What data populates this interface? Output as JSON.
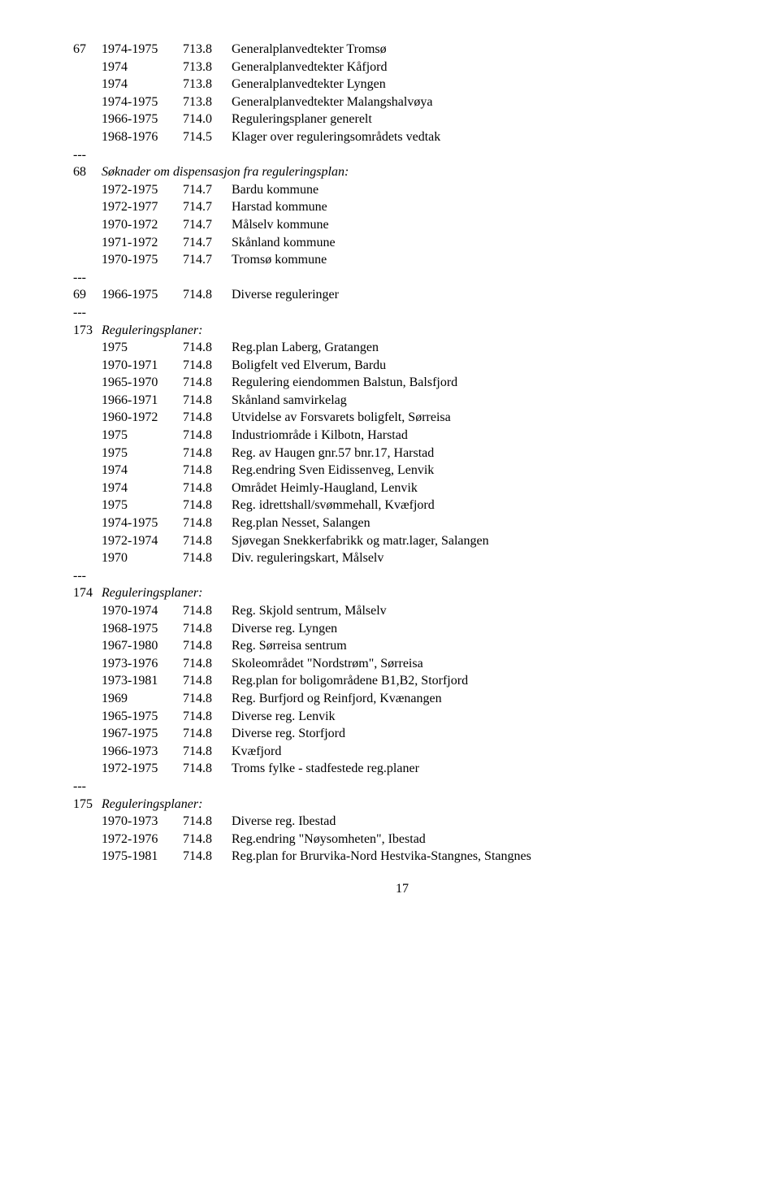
{
  "separator": "---",
  "page_number": "17",
  "sections": [
    {
      "num": "67",
      "header": null,
      "rows": [
        {
          "year": "1974-1975",
          "code": "713.8",
          "desc": "Generalplanvedtekter Tromsø"
        },
        {
          "year": "1974",
          "code": "713.8",
          "desc": "Generalplanvedtekter Kåfjord"
        },
        {
          "year": "1974",
          "code": "713.8",
          "desc": "Generalplanvedtekter Lyngen"
        },
        {
          "year": "1974-1975",
          "code": "713.8",
          "desc": "Generalplanvedtekter Malangshalvøya"
        },
        {
          "year": "1966-1975",
          "code": "714.0",
          "desc": "Reguleringsplaner generelt"
        },
        {
          "year": "1968-1976",
          "code": "714.5",
          "desc": "Klager over reguleringsområdets vedtak"
        }
      ]
    },
    {
      "num": "68",
      "header": "Søknader om dispensasjon fra reguleringsplan:",
      "rows": [
        {
          "year": "1972-1975",
          "code": "714.7",
          "desc": "Bardu kommune"
        },
        {
          "year": "1972-1977",
          "code": "714.7",
          "desc": "Harstad kommune"
        },
        {
          "year": "1970-1972",
          "code": "714.7",
          "desc": "Målselv kommune"
        },
        {
          "year": "1971-1972",
          "code": "714.7",
          "desc": "Skånland kommune"
        },
        {
          "year": "1970-1975",
          "code": "714.7",
          "desc": "Tromsø kommune"
        }
      ]
    },
    {
      "num": "69",
      "header": null,
      "rows": [
        {
          "year": "1966-1975",
          "code": "714.8",
          "desc": "Diverse reguleringer"
        }
      ]
    },
    {
      "num": "173",
      "header": "Reguleringsplaner:",
      "rows": [
        {
          "year": "1975",
          "code": "714.8",
          "desc": "Reg.plan Laberg, Gratangen"
        },
        {
          "year": "1970-1971",
          "code": "714.8",
          "desc": "Boligfelt ved Elverum, Bardu"
        },
        {
          "year": "1965-1970",
          "code": "714.8",
          "desc": "Regulering eiendommen Balstun, Balsfjord"
        },
        {
          "year": "1966-1971",
          "code": "714.8",
          "desc": "Skånland samvirkelag"
        },
        {
          "year": "1960-1972",
          "code": "714.8",
          "desc": "Utvidelse av Forsvarets boligfelt, Sørreisa"
        },
        {
          "year": "1975",
          "code": "714.8",
          "desc": "Industriområde i Kilbotn, Harstad"
        },
        {
          "year": "1975",
          "code": "714.8",
          "desc": "Reg. av Haugen gnr.57 bnr.17, Harstad"
        },
        {
          "year": "1974",
          "code": "714.8",
          "desc": "Reg.endring Sven Eidissenveg, Lenvik"
        },
        {
          "year": "1974",
          "code": "714.8",
          "desc": "Området Heimly-Haugland, Lenvik"
        },
        {
          "year": "1975",
          "code": "714.8",
          "desc": "Reg. idrettshall/svømmehall, Kvæfjord"
        },
        {
          "year": "1974-1975",
          "code": "714.8",
          "desc": "Reg.plan Nesset, Salangen"
        },
        {
          "year": "1972-1974",
          "code": "714.8",
          "desc": "Sjøvegan Snekkerfabrikk og matr.lager, Salangen"
        },
        {
          "year": "1970",
          "code": "714.8",
          "desc": "Div. reguleringskart, Målselv"
        }
      ]
    },
    {
      "num": "174",
      "header": "Reguleringsplaner:",
      "rows": [
        {
          "year": "1970-1974",
          "code": "714.8",
          "desc": "Reg. Skjold sentrum, Målselv"
        },
        {
          "year": "1968-1975",
          "code": "714.8",
          "desc": "Diverse reg. Lyngen"
        },
        {
          "year": "1967-1980",
          "code": "714.8",
          "desc": "Reg. Sørreisa sentrum"
        },
        {
          "year": "1973-1976",
          "code": "714.8",
          "desc": "Skoleområdet \"Nordstrøm\", Sørreisa"
        },
        {
          "year": "1973-1981",
          "code": "714.8",
          "desc": "Reg.plan for boligområdene B1,B2, Storfjord"
        },
        {
          "year": "1969",
          "code": "714.8",
          "desc": "Reg. Burfjord og Reinfjord, Kvænangen"
        },
        {
          "year": "1965-1975",
          "code": "714.8",
          "desc": "Diverse reg. Lenvik"
        },
        {
          "year": "1967-1975",
          "code": "714.8",
          "desc": "Diverse reg. Storfjord"
        },
        {
          "year": "1966-1973",
          "code": "714.8",
          "desc": "Kvæfjord"
        },
        {
          "year": "1972-1975",
          "code": "714.8",
          "desc": "Troms fylke - stadfestede reg.planer"
        }
      ]
    },
    {
      "num": "175",
      "header": "Reguleringsplaner:",
      "rows": [
        {
          "year": "1970-1973",
          "code": "714.8",
          "desc": "Diverse reg. Ibestad"
        },
        {
          "year": "1972-1976",
          "code": "714.8",
          "desc": "Reg.endring \"Nøysomheten\", Ibestad"
        },
        {
          "year": "1975-1981",
          "code": "714.8",
          "desc": "Reg.plan for Brurvika-Nord Hestvika-Stangnes, Stangnes"
        }
      ]
    }
  ]
}
